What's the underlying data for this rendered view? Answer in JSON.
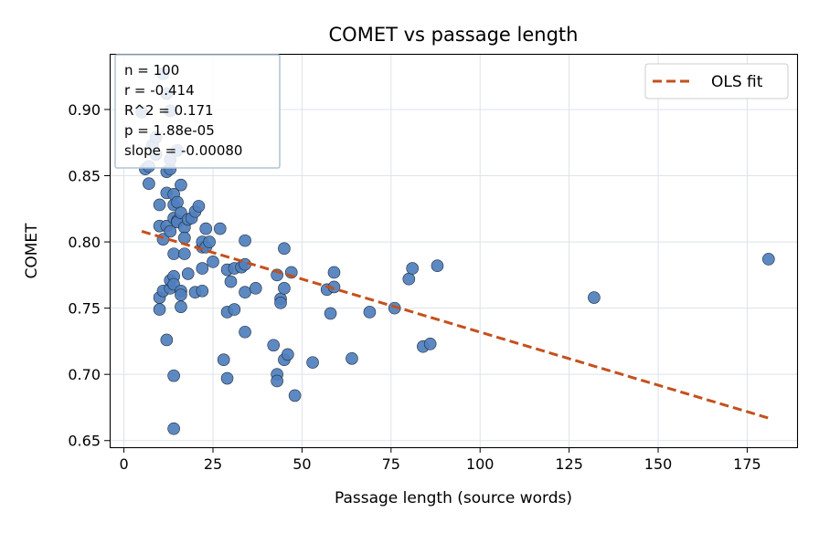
{
  "chart_data": {
    "type": "scatter",
    "title": "COMET vs passage length",
    "xlabel": "Passage length (source words)",
    "ylabel": "COMET",
    "xlim": [
      -4,
      189
    ],
    "ylim": [
      0.645,
      0.942
    ],
    "xticks": [
      0,
      25,
      50,
      75,
      100,
      125,
      150,
      175
    ],
    "yticks": [
      0.65,
      0.7,
      0.75,
      0.8,
      0.85,
      0.9
    ],
    "ytick_labels": [
      "0.65",
      "0.70",
      "0.75",
      "0.80",
      "0.85",
      "0.90"
    ],
    "grid": true,
    "legend_position": "top-right",
    "stats_box": [
      "n = 100",
      "r = -0.414",
      "R^2 = 0.171",
      "p = 1.88e-05",
      "slope = -0.00080"
    ],
    "fit": {
      "name": "OLS fit",
      "x": [
        5,
        181
      ],
      "y": [
        0.808,
        0.667
      ],
      "color": "#c4501c"
    },
    "point_color": "#4f7fbd",
    "series": [
      {
        "points": [
          [
            5,
            0.898
          ],
          [
            6,
            0.855
          ],
          [
            7,
            0.857
          ],
          [
            7,
            0.844
          ],
          [
            8,
            0.873
          ],
          [
            9,
            0.879
          ],
          [
            10,
            0.812
          ],
          [
            10,
            0.828
          ],
          [
            10,
            0.758
          ],
          [
            10,
            0.749
          ],
          [
            11,
            0.802
          ],
          [
            11,
            0.763
          ],
          [
            12,
            0.853
          ],
          [
            12,
            0.837
          ],
          [
            12,
            0.812
          ],
          [
            12,
            0.726
          ],
          [
            13,
            0.855
          ],
          [
            13,
            0.862
          ],
          [
            13,
            0.808
          ],
          [
            13,
            0.765
          ],
          [
            13,
            0.771
          ],
          [
            14,
            0.828
          ],
          [
            14,
            0.818
          ],
          [
            14,
            0.836
          ],
          [
            14,
            0.791
          ],
          [
            14,
            0.774
          ],
          [
            14,
            0.768
          ],
          [
            14,
            0.699
          ],
          [
            14,
            0.659
          ],
          [
            15,
            0.83
          ],
          [
            15,
            0.816
          ],
          [
            15,
            0.815
          ],
          [
            16,
            0.843
          ],
          [
            16,
            0.822
          ],
          [
            16,
            0.763
          ],
          [
            16,
            0.76
          ],
          [
            16,
            0.751
          ],
          [
            17,
            0.811
          ],
          [
            17,
            0.803
          ],
          [
            17,
            0.791
          ],
          [
            18,
            0.817
          ],
          [
            18,
            0.776
          ],
          [
            19,
            0.818
          ],
          [
            20,
            0.823
          ],
          [
            20,
            0.762
          ],
          [
            21,
            0.827
          ],
          [
            22,
            0.796
          ],
          [
            22,
            0.8
          ],
          [
            22,
            0.78
          ],
          [
            22,
            0.763
          ],
          [
            23,
            0.81
          ],
          [
            23,
            0.796
          ],
          [
            24,
            0.8
          ],
          [
            25,
            0.785
          ],
          [
            27,
            0.81
          ],
          [
            28,
            0.711
          ],
          [
            29,
            0.779
          ],
          [
            29,
            0.747
          ],
          [
            29,
            0.697
          ],
          [
            30,
            0.77
          ],
          [
            31,
            0.78
          ],
          [
            31,
            0.749
          ],
          [
            33,
            0.781
          ],
          [
            34,
            0.801
          ],
          [
            34,
            0.783
          ],
          [
            34,
            0.762
          ],
          [
            34,
            0.732
          ],
          [
            37,
            0.765
          ],
          [
            42,
            0.722
          ],
          [
            43,
            0.775
          ],
          [
            43,
            0.7
          ],
          [
            43,
            0.695
          ],
          [
            44,
            0.757
          ],
          [
            44,
            0.754
          ],
          [
            45,
            0.795
          ],
          [
            45,
            0.765
          ],
          [
            45,
            0.711
          ],
          [
            46,
            0.715
          ],
          [
            47,
            0.777
          ],
          [
            48,
            0.684
          ],
          [
            53,
            0.709
          ],
          [
            57,
            0.764
          ],
          [
            58,
            0.746
          ],
          [
            59,
            0.766
          ],
          [
            59,
            0.777
          ],
          [
            64,
            0.712
          ],
          [
            69,
            0.747
          ],
          [
            76,
            0.75
          ],
          [
            80,
            0.772
          ],
          [
            81,
            0.78
          ],
          [
            84,
            0.721
          ],
          [
            86,
            0.723
          ],
          [
            88,
            0.782
          ],
          [
            132,
            0.758
          ],
          [
            181,
            0.787
          ],
          [
            11,
            0.927
          ],
          [
            13,
            0.899
          ],
          [
            15,
            0.869
          ],
          [
            9,
            0.866
          ],
          [
            12,
            0.912
          ]
        ]
      }
    ]
  }
}
